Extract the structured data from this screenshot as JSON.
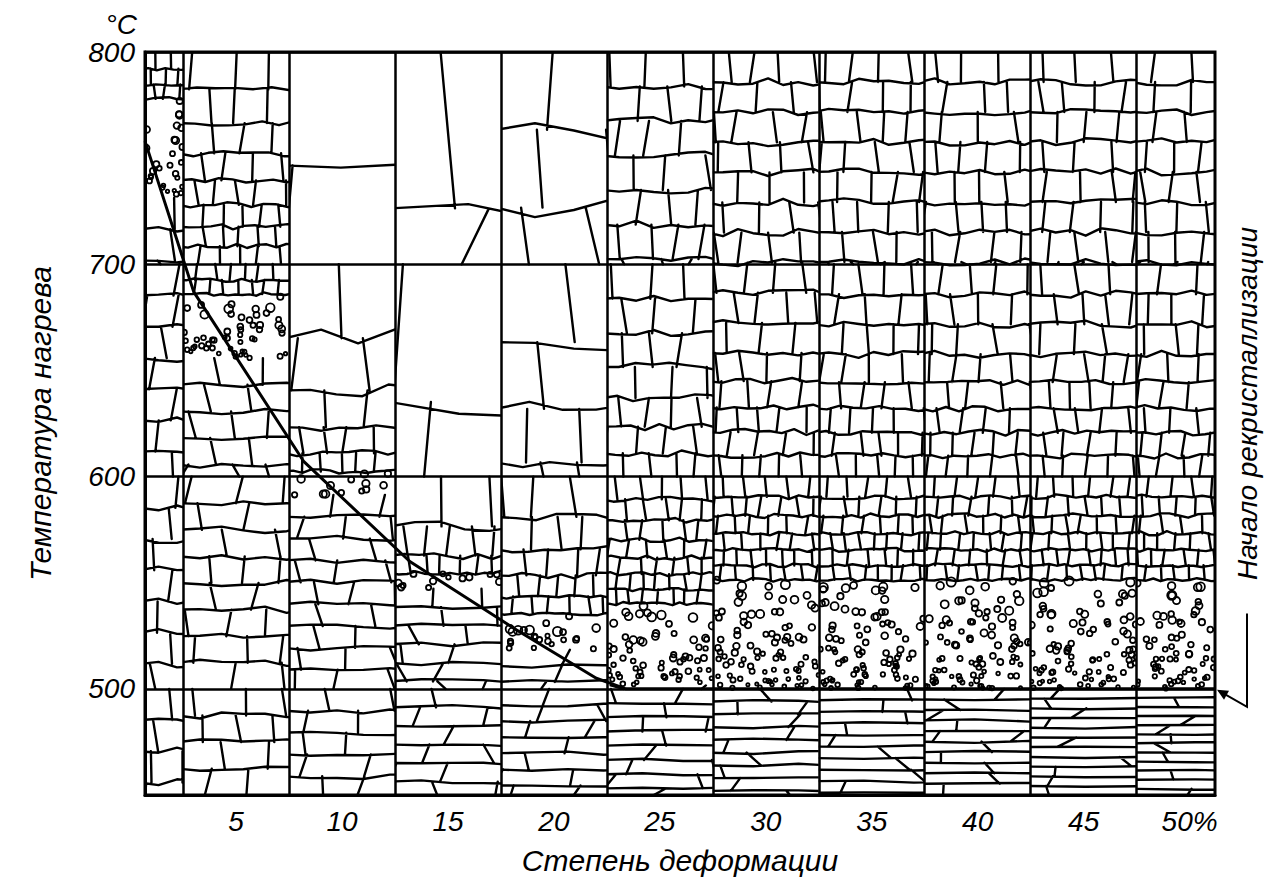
{
  "chart_data": {
    "type": "line",
    "xlabel": "Степень деформации",
    "ylabel": "Температура нагрева",
    "y_unit": "°C",
    "xlim": [
      0.7,
      51.2
    ],
    "ylim": [
      450,
      800
    ],
    "xticks": [
      5,
      10,
      15,
      20,
      25,
      30,
      35,
      40,
      45,
      {
        "value": 50,
        "label": "50%"
      }
    ],
    "yticks": [
      500,
      600,
      700,
      800
    ],
    "grid": true,
    "series": [
      {
        "name": "Начало рекристаллизации",
        "color": "#000000",
        "x": [
          0.7,
          3,
          8.2,
          13.2,
          18.2,
          22,
          23.4,
          51.2
        ],
        "values": [
          758,
          687,
          607,
          560,
          528,
          505,
          500,
          500
        ]
      }
    ]
  }
}
